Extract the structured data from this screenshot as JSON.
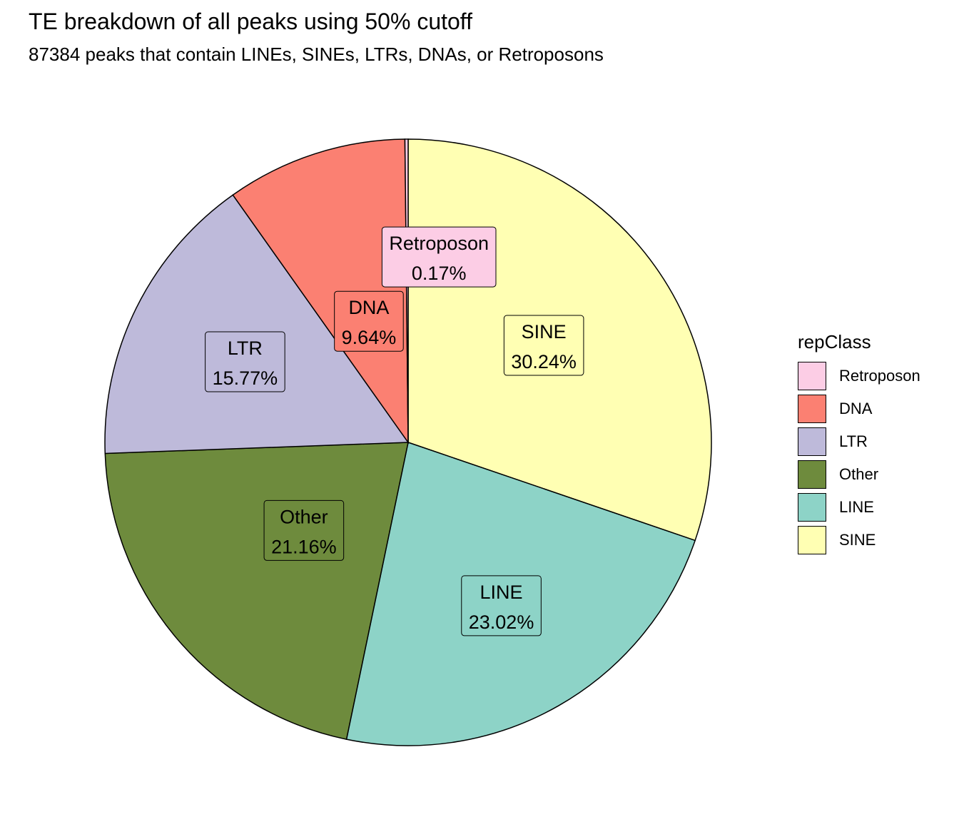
{
  "chart_data": {
    "type": "pie",
    "title": "TE breakdown of all peaks using 50% cutoff",
    "subtitle": "87384 peaks that contain LINEs, SINEs, LTRs, DNAs, or Retroposons",
    "legend_title": "repClass",
    "legend_position": "right",
    "slices": [
      {
        "name": "Retroposon",
        "value": 0.17,
        "label": "0.17%",
        "color": "#FCCDE5"
      },
      {
        "name": "DNA",
        "value": 9.64,
        "label": "9.64%",
        "color": "#FB8072"
      },
      {
        "name": "LTR",
        "value": 15.77,
        "label": "15.77%",
        "color": "#BEBADA"
      },
      {
        "name": "Other",
        "value": 21.16,
        "label": "21.16%",
        "color": "#6E8B3D"
      },
      {
        "name": "LINE",
        "value": 23.02,
        "label": "23.02%",
        "color": "#8DD3C7"
      },
      {
        "name": "SINE",
        "value": 30.24,
        "label": "30.24%",
        "color": "#FFFFB3"
      }
    ]
  }
}
